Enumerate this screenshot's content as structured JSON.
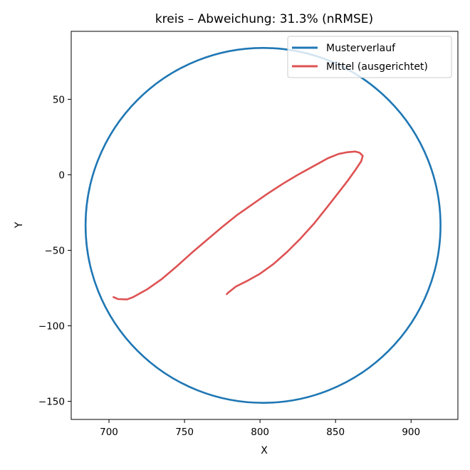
{
  "chart_data": {
    "type": "line",
    "title": "kreis – Abweichung: 31.3% (nRMSE)",
    "xlabel": "X",
    "ylabel": "Y",
    "xlim": [
      675,
      931
    ],
    "ylim": [
      -162,
      95
    ],
    "xticks": [
      700,
      750,
      800,
      850,
      900
    ],
    "yticks": [
      50,
      0,
      -50,
      -100,
      -150
    ],
    "xtick_labels": [
      "700",
      "750",
      "800",
      "850",
      "900"
    ],
    "ytick_labels": [
      "50",
      "0",
      "−50",
      "−100",
      "−150"
    ],
    "grid": false,
    "legend_position": "top-right",
    "series": [
      {
        "name": "Musterverlauf",
        "color": "#1f77b4",
        "shape": "circle",
        "center": [
          802,
          -33.5
        ],
        "radius": 117.5
      },
      {
        "name": "Mittel (ausgerichtet)",
        "color": "#d62728",
        "points": [
          [
            703,
            -81
          ],
          [
            706,
            -82.3
          ],
          [
            712,
            -82.5
          ],
          [
            716,
            -81
          ],
          [
            725,
            -76
          ],
          [
            735,
            -69
          ],
          [
            745,
            -60.5
          ],
          [
            755,
            -51.5
          ],
          [
            765,
            -43
          ],
          [
            775,
            -34.5
          ],
          [
            785,
            -26.5
          ],
          [
            795,
            -19.5
          ],
          [
            805,
            -12.5
          ],
          [
            815,
            -6
          ],
          [
            825,
            0
          ],
          [
            835,
            5.5
          ],
          [
            845,
            11
          ],
          [
            852,
            13.8
          ],
          [
            858,
            15
          ],
          [
            863,
            15.4
          ],
          [
            866,
            14.6
          ],
          [
            868,
            12.5
          ],
          [
            867,
            9
          ],
          [
            863,
            3
          ],
          [
            858,
            -4
          ],
          [
            851,
            -13
          ],
          [
            844,
            -22
          ],
          [
            836,
            -32
          ],
          [
            827,
            -42
          ],
          [
            818,
            -51
          ],
          [
            809,
            -59
          ],
          [
            800,
            -65.5
          ],
          [
            792,
            -70
          ],
          [
            784,
            -74
          ],
          [
            779,
            -78
          ],
          [
            778,
            -79
          ]
        ]
      }
    ]
  }
}
